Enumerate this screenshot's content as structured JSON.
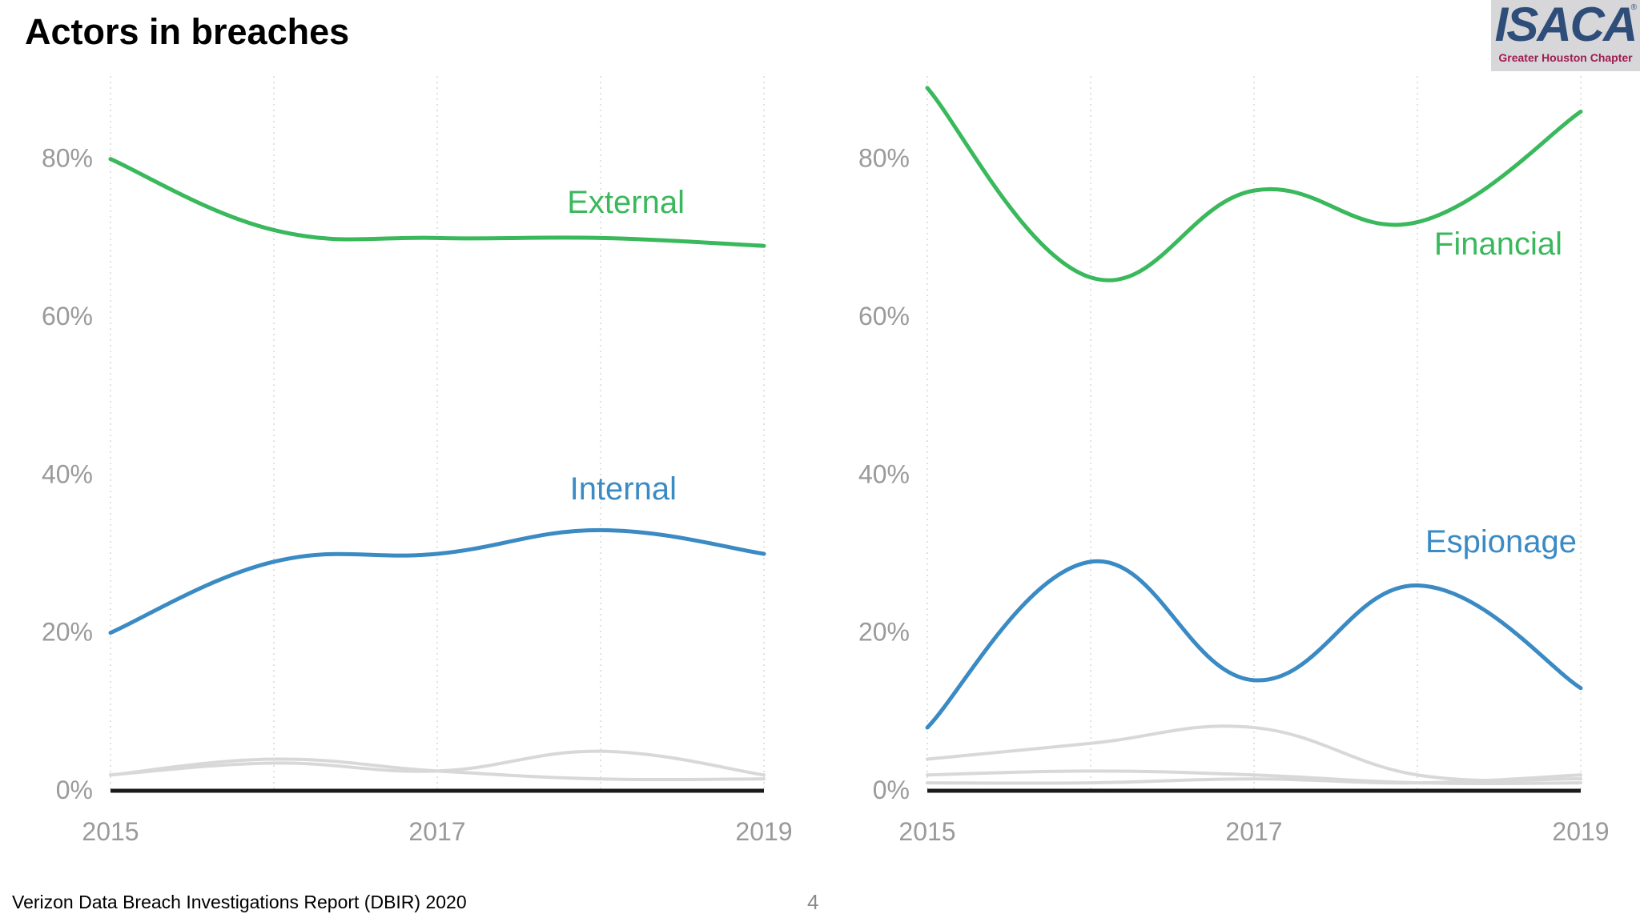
{
  "slide": {
    "title": "Actors in breaches",
    "footer": "Verizon Data Breach Investigations Report (DBIR) 2020",
    "page_number": "4"
  },
  "logo": {
    "name": "ISACA",
    "registered_mark": "®",
    "chapter": "Greater Houston Chapter",
    "colors": {
      "wordmark": "#2f4d79",
      "chapter": "#a01c53",
      "background": "#d7d6d9"
    }
  },
  "colors": {
    "green": "#3ab85c",
    "blue": "#3a8ac4",
    "gray_line": "#d8d8d8",
    "axis": "#1a1a1a",
    "grid": "#e1e1e1",
    "tick_text": "#9a9a9a"
  },
  "chart_data": [
    {
      "type": "line",
      "x": [
        2015,
        2016,
        2017,
        2018,
        2019
      ],
      "x_tick_labels": [
        "2015",
        "2017",
        "2019"
      ],
      "x_tick_values": [
        2015,
        2017,
        2019
      ],
      "y_ticks": [
        0,
        20,
        40,
        60,
        80
      ],
      "y_tick_labels": [
        "0%",
        "20%",
        "40%",
        "60%",
        "80%"
      ],
      "ylim": [
        0,
        90
      ],
      "grid": "vertical dotted",
      "series": [
        {
          "name": "External",
          "color": "green",
          "values": [
            80,
            71,
            70,
            70,
            69
          ]
        },
        {
          "name": "Internal",
          "color": "blue",
          "values": [
            20,
            29,
            30,
            33,
            30
          ]
        },
        {
          "name": "",
          "color": "gray",
          "values": [
            2,
            4,
            2.5,
            1.5,
            1.5
          ]
        },
        {
          "name": "",
          "color": "gray",
          "values": [
            2,
            3.5,
            2.5,
            5,
            2
          ]
        }
      ]
    },
    {
      "type": "line",
      "x": [
        2015,
        2016,
        2017,
        2018,
        2019
      ],
      "x_tick_labels": [
        "2015",
        "2017",
        "2019"
      ],
      "x_tick_values": [
        2015,
        2017,
        2019
      ],
      "y_ticks": [
        0,
        20,
        40,
        60,
        80
      ],
      "y_tick_labels": [
        "0%",
        "20%",
        "40%",
        "60%",
        "80%"
      ],
      "ylim": [
        0,
        90
      ],
      "grid": "vertical dotted",
      "series": [
        {
          "name": "Financial",
          "color": "green",
          "values": [
            89,
            65,
            76,
            72,
            86
          ]
        },
        {
          "name": "Espionage",
          "color": "blue",
          "values": [
            8,
            29,
            14,
            26,
            13
          ]
        },
        {
          "name": "",
          "color": "gray",
          "values": [
            4,
            6,
            8,
            2,
            1.5
          ]
        },
        {
          "name": "",
          "color": "gray",
          "values": [
            2,
            2.5,
            2,
            1,
            1
          ]
        },
        {
          "name": "",
          "color": "gray",
          "values": [
            1,
            1,
            1.5,
            1,
            2
          ]
        }
      ]
    }
  ]
}
